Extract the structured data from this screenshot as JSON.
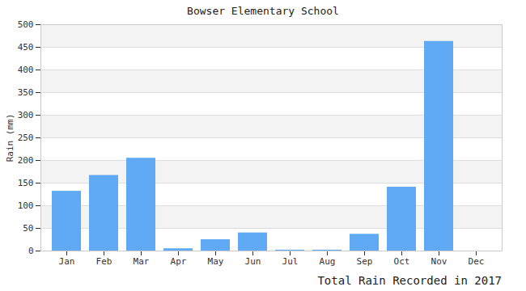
{
  "chart_data": {
    "type": "bar",
    "title": "Bowser Elementary School",
    "x_label": "Total Rain Recorded in 2017",
    "y_label": "Rain (mm)",
    "categories": [
      "Jan",
      "Feb",
      "Mar",
      "Apr",
      "May",
      "Jun",
      "Jul",
      "Aug",
      "Sep",
      "Oct",
      "Nov",
      "Dec"
    ],
    "values": [
      132,
      167,
      205,
      5,
      25,
      40,
      2,
      2,
      37,
      141,
      463,
      0
    ],
    "color": "#60a9f4",
    "ylim": [
      0,
      500
    ],
    "yticks": [
      0,
      50,
      100,
      150,
      200,
      250,
      300,
      350,
      400,
      450,
      500
    ],
    "grid": true
  }
}
